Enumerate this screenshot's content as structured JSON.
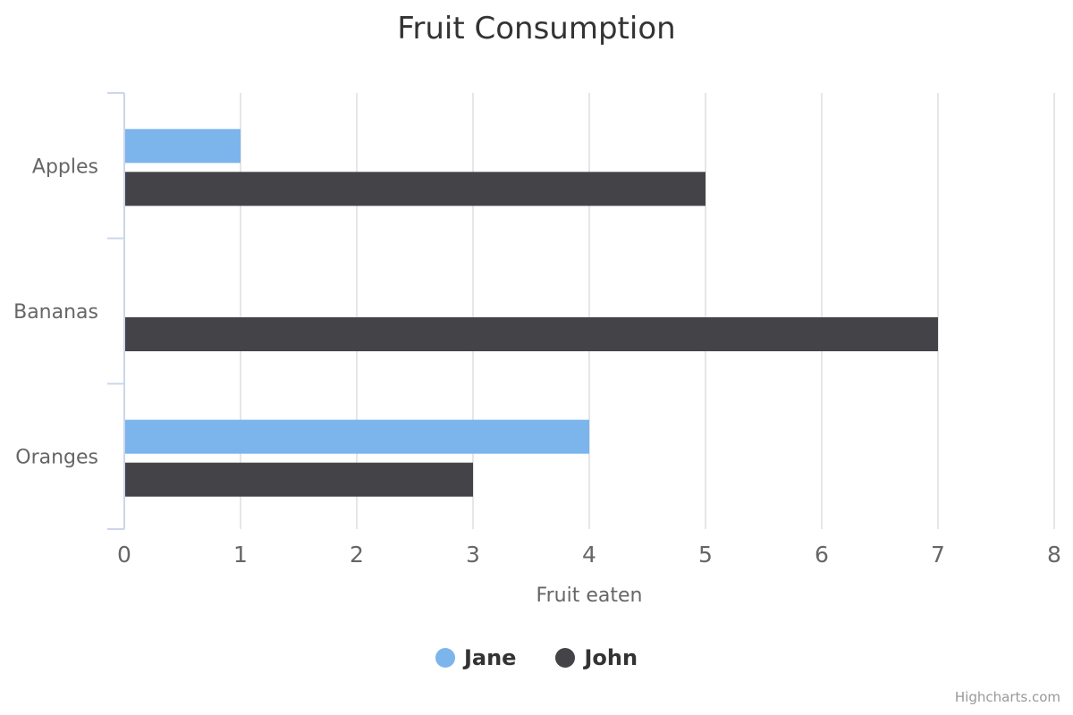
{
  "chart_data": {
    "type": "bar",
    "orientation": "horizontal",
    "title": "Fruit Consumption",
    "categories": [
      "Apples",
      "Bananas",
      "Oranges"
    ],
    "series": [
      {
        "name": "Jane",
        "color": "#7cb5ec",
        "values": [
          1,
          0,
          4
        ]
      },
      {
        "name": "John",
        "color": "#434348",
        "values": [
          5,
          7,
          3
        ]
      }
    ],
    "value_axis": {
      "label": "Fruit eaten",
      "min": 0,
      "max": 8,
      "tick_interval": 1,
      "ticks": [
        "0",
        "1",
        "2",
        "3",
        "4",
        "5",
        "6",
        "7",
        "8"
      ]
    },
    "grid": true,
    "legend_position": "bottom-center",
    "credits": "Highcharts.com"
  },
  "colors": {
    "series_jane": "#7cb5ec",
    "series_john": "#434348",
    "category_axis_line": "#ccd6eb",
    "gridline": "#e6e6e6",
    "axis_text": "#666666",
    "title_text": "#333333",
    "legend_text": "#333333",
    "credits_text": "#999999",
    "background": "#ffffff"
  }
}
